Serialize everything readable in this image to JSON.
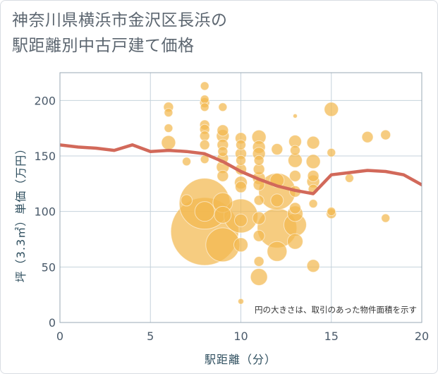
{
  "title": {
    "line1": "神奈川県横浜市金沢区長浜の",
    "line2": "駅距離別中古戸建て価格"
  },
  "note": "円の大きさは、取引のあった物件面積を示す",
  "colors": {
    "bubble": "#f2b94f",
    "trend": "#d2695a",
    "grid": "#c5d2dc",
    "plot_border": "#9aa8b4"
  },
  "chart_data": {
    "type": "scatter",
    "xlabel": "駅距離（分）",
    "ylabel": "坪（3.3㎡）単価（万円）",
    "xlim": [
      0,
      20
    ],
    "ylim": [
      0,
      225
    ],
    "x_ticks": [
      0,
      5,
      10,
      15,
      20
    ],
    "y_ticks": [
      0,
      50,
      100,
      150,
      200
    ],
    "grid": true,
    "bubbles": [
      {
        "x": 6,
        "y": 194,
        "r": 7
      },
      {
        "x": 6,
        "y": 189,
        "r": 6
      },
      {
        "x": 6,
        "y": 175,
        "r": 6
      },
      {
        "x": 6,
        "y": 162,
        "r": 10
      },
      {
        "x": 7,
        "y": 145,
        "r": 6
      },
      {
        "x": 7,
        "y": 110,
        "r": 8
      },
      {
        "x": 8,
        "y": 213,
        "r": 6
      },
      {
        "x": 8,
        "y": 201,
        "r": 6
      },
      {
        "x": 8,
        "y": 198,
        "r": 7
      },
      {
        "x": 8,
        "y": 194,
        "r": 6
      },
      {
        "x": 8,
        "y": 178,
        "r": 7
      },
      {
        "x": 8,
        "y": 174,
        "r": 7
      },
      {
        "x": 8,
        "y": 168,
        "r": 7
      },
      {
        "x": 8,
        "y": 160,
        "r": 7
      },
      {
        "x": 8,
        "y": 147,
        "r": 6
      },
      {
        "x": 8,
        "y": 107,
        "r": 36
      },
      {
        "x": 8,
        "y": 100,
        "r": 14
      },
      {
        "x": 8,
        "y": 82,
        "r": 48
      },
      {
        "x": 9,
        "y": 194,
        "r": 6
      },
      {
        "x": 9,
        "y": 173,
        "r": 8
      },
      {
        "x": 9,
        "y": 168,
        "r": 9
      },
      {
        "x": 9,
        "y": 160,
        "r": 8
      },
      {
        "x": 9,
        "y": 154,
        "r": 7
      },
      {
        "x": 9,
        "y": 148,
        "r": 8
      },
      {
        "x": 9,
        "y": 140,
        "r": 9
      },
      {
        "x": 9,
        "y": 132,
        "r": 8
      },
      {
        "x": 9,
        "y": 108,
        "r": 14
      },
      {
        "x": 9,
        "y": 97,
        "r": 12
      },
      {
        "x": 9,
        "y": 70,
        "r": 24
      },
      {
        "x": 10,
        "y": 166,
        "r": 8
      },
      {
        "x": 10,
        "y": 160,
        "r": 7
      },
      {
        "x": 10,
        "y": 152,
        "r": 8
      },
      {
        "x": 10,
        "y": 146,
        "r": 7
      },
      {
        "x": 10,
        "y": 138,
        "r": 8
      },
      {
        "x": 10,
        "y": 126,
        "r": 9
      },
      {
        "x": 10,
        "y": 122,
        "r": 8
      },
      {
        "x": 10,
        "y": 96,
        "r": 24
      },
      {
        "x": 10,
        "y": 92,
        "r": 9
      },
      {
        "x": 10,
        "y": 70,
        "r": 10
      },
      {
        "x": 10,
        "y": 19,
        "r": 4
      },
      {
        "x": 11,
        "y": 167,
        "r": 10
      },
      {
        "x": 11,
        "y": 158,
        "r": 9
      },
      {
        "x": 11,
        "y": 152,
        "r": 9
      },
      {
        "x": 11,
        "y": 146,
        "r": 7
      },
      {
        "x": 11,
        "y": 138,
        "r": 8
      },
      {
        "x": 11,
        "y": 130,
        "r": 9
      },
      {
        "x": 11,
        "y": 124,
        "r": 8
      },
      {
        "x": 11,
        "y": 110,
        "r": 7
      },
      {
        "x": 11,
        "y": 94,
        "r": 9
      },
      {
        "x": 11,
        "y": 78,
        "r": 8
      },
      {
        "x": 11,
        "y": 55,
        "r": 7
      },
      {
        "x": 11,
        "y": 41,
        "r": 12
      },
      {
        "x": 12,
        "y": 156,
        "r": 8
      },
      {
        "x": 12,
        "y": 128,
        "r": 10
      },
      {
        "x": 12,
        "y": 118,
        "r": 26
      },
      {
        "x": 12,
        "y": 110,
        "r": 9
      },
      {
        "x": 12,
        "y": 85,
        "r": 28
      },
      {
        "x": 12,
        "y": 64,
        "r": 14
      },
      {
        "x": 13,
        "y": 186,
        "r": 3
      },
      {
        "x": 13,
        "y": 163,
        "r": 9
      },
      {
        "x": 13,
        "y": 155,
        "r": 7
      },
      {
        "x": 13,
        "y": 146,
        "r": 10
      },
      {
        "x": 13,
        "y": 132,
        "r": 8
      },
      {
        "x": 13,
        "y": 118,
        "r": 8
      },
      {
        "x": 13,
        "y": 103,
        "r": 8
      },
      {
        "x": 13,
        "y": 98,
        "r": 11
      },
      {
        "x": 13,
        "y": 88,
        "r": 16
      },
      {
        "x": 13,
        "y": 73,
        "r": 11
      },
      {
        "x": 14,
        "y": 162,
        "r": 9
      },
      {
        "x": 14,
        "y": 145,
        "r": 10
      },
      {
        "x": 14,
        "y": 132,
        "r": 8
      },
      {
        "x": 14,
        "y": 127,
        "r": 9
      },
      {
        "x": 14,
        "y": 120,
        "r": 7
      },
      {
        "x": 14,
        "y": 107,
        "r": 6
      },
      {
        "x": 14,
        "y": 51,
        "r": 9
      },
      {
        "x": 15,
        "y": 192,
        "r": 10
      },
      {
        "x": 15,
        "y": 153,
        "r": 6
      },
      {
        "x": 15,
        "y": 100,
        "r": 6
      },
      {
        "x": 15,
        "y": 98,
        "r": 7
      },
      {
        "x": 16,
        "y": 130,
        "r": 6
      },
      {
        "x": 17,
        "y": 167,
        "r": 8
      },
      {
        "x": 18,
        "y": 169,
        "r": 7
      },
      {
        "x": 18,
        "y": 94,
        "r": 6
      }
    ],
    "trend_line": {
      "x": [
        0,
        1,
        2,
        3,
        4,
        5,
        6,
        7,
        8,
        9,
        10,
        11,
        12,
        13,
        14,
        15,
        16,
        17,
        18,
        19,
        20
      ],
      "y": [
        160,
        158,
        157,
        155,
        160,
        154,
        155,
        154,
        152,
        145,
        136,
        129,
        123,
        119,
        116,
        133,
        135,
        137,
        136,
        133,
        124
      ]
    }
  }
}
